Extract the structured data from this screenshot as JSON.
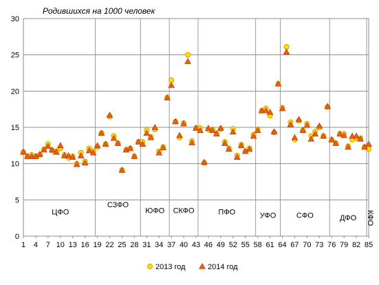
{
  "chart_data": {
    "type": "scatter",
    "title": "Родившихся на 1000 человек",
    "xlabel": "",
    "ylabel": "",
    "xlim": [
      1,
      85
    ],
    "ylim": [
      0,
      30
    ],
    "y_ticks": [
      0,
      5,
      10,
      15,
      20,
      25,
      30
    ],
    "x_ticks": [
      1,
      4,
      7,
      10,
      13,
      16,
      19,
      22,
      25,
      28,
      31,
      34,
      37,
      40,
      43,
      46,
      49,
      52,
      55,
      58,
      61,
      64,
      67,
      70,
      73,
      76,
      79,
      82,
      85
    ],
    "grid": {
      "horizontal": true,
      "vertical_region_dividers": true
    },
    "legend_position": "bottom",
    "district_boundaries": [
      18.5,
      29.5,
      36.5,
      43.5,
      57.5,
      63.5,
      75.5,
      84.5
    ],
    "districts": [
      {
        "label": "ЦФО",
        "x": 10,
        "y": 3,
        "vertical": false
      },
      {
        "label": "СЗФО",
        "x": 24,
        "y": 4,
        "vertical": false
      },
      {
        "label": "ЮФО",
        "x": 33,
        "y": 3.2,
        "vertical": false
      },
      {
        "label": "СКФО",
        "x": 40,
        "y": 3.2,
        "vertical": false
      },
      {
        "label": "ПФО",
        "x": 50.5,
        "y": 3,
        "vertical": false
      },
      {
        "label": "УФО",
        "x": 60.5,
        "y": 2.5,
        "vertical": false
      },
      {
        "label": "СФО",
        "x": 69.5,
        "y": 2.5,
        "vertical": false
      },
      {
        "label": "ДФО",
        "x": 80,
        "y": 2.2,
        "vertical": false
      },
      {
        "label": "КФО",
        "x": 84.8,
        "y": 2.5,
        "vertical": true
      }
    ],
    "series": [
      {
        "name": "2013 год",
        "marker": "circle",
        "color": "#ffe000",
        "stroke": "#d4a400",
        "x": [
          1,
          2,
          3,
          4,
          5,
          6,
          7,
          8,
          9,
          10,
          11,
          12,
          13,
          14,
          15,
          16,
          17,
          18,
          19,
          20,
          21,
          22,
          23,
          24,
          25,
          26,
          27,
          28,
          29,
          30,
          31,
          32,
          33,
          34,
          35,
          36,
          37,
          38,
          39,
          40,
          41,
          42,
          43,
          44,
          45,
          46,
          47,
          48,
          49,
          50,
          51,
          52,
          53,
          54,
          55,
          56,
          57,
          58,
          59,
          60,
          61,
          62,
          63,
          64,
          65,
          66,
          67,
          68,
          69,
          70,
          71,
          72,
          73,
          74,
          75,
          76,
          77,
          78,
          79,
          80,
          81,
          82,
          83,
          84,
          85
        ],
        "y": [
          11.6,
          11,
          11.2,
          11,
          11.2,
          12,
          12.7,
          11.8,
          11.7,
          12.1,
          11.2,
          10.8,
          11,
          10,
          11.5,
          10.3,
          12.1,
          11.7,
          12.3,
          14.2,
          12.7,
          16.5,
          13.8,
          12.8,
          9.1,
          11.9,
          12.1,
          11,
          13,
          13,
          14.6,
          13.7,
          14.7,
          11.7,
          12.3,
          19.1,
          21.5,
          15.8,
          13.6,
          15.6,
          25,
          13.1,
          14.9,
          14.9,
          10.1,
          14.7,
          14.7,
          14.2,
          14.8,
          13,
          12.1,
          14.8,
          11.1,
          12.6,
          11.7,
          12.1,
          14,
          14.7,
          17.3,
          17.6,
          16.6,
          14.3,
          21,
          17.7,
          26.1,
          15.7,
          13.3,
          15.9,
          14.6,
          15.5,
          13.8,
          14.4,
          15,
          13.8,
          17.8,
          13.3,
          12.8,
          14.1,
          14.1,
          12.4,
          13.3,
          13.5,
          13.5,
          12.3,
          12
        ]
      },
      {
        "name": "2014 год",
        "marker": "triangle",
        "color": "#e8601c",
        "stroke": "#b84000",
        "x": [
          1,
          2,
          3,
          4,
          5,
          6,
          7,
          8,
          9,
          10,
          11,
          12,
          13,
          14,
          15,
          16,
          17,
          18,
          19,
          20,
          21,
          22,
          23,
          24,
          25,
          26,
          27,
          28,
          29,
          30,
          31,
          32,
          33,
          34,
          35,
          36,
          37,
          38,
          39,
          40,
          41,
          42,
          43,
          44,
          45,
          46,
          47,
          48,
          49,
          50,
          51,
          52,
          53,
          54,
          55,
          56,
          57,
          58,
          59,
          60,
          61,
          62,
          63,
          64,
          65,
          66,
          67,
          68,
          69,
          70,
          71,
          72,
          73,
          74,
          75,
          76,
          77,
          78,
          79,
          80,
          81,
          82,
          83,
          84,
          85
        ],
        "y": [
          11.6,
          11,
          11,
          11,
          11.3,
          11.9,
          12.4,
          11.9,
          11.6,
          12.5,
          11.1,
          11.1,
          10.9,
          9.9,
          11.1,
          10.1,
          11.8,
          11.5,
          12.5,
          14.2,
          12.7,
          16.7,
          13.5,
          12.8,
          9.1,
          11.9,
          12.1,
          11,
          13,
          12.7,
          14.2,
          13.6,
          15,
          11.5,
          12.2,
          19.1,
          20.8,
          15.8,
          13.9,
          15.5,
          24.1,
          12.9,
          14.9,
          14.6,
          10.2,
          14.9,
          14.6,
          14.1,
          14.9,
          12.8,
          12,
          14.4,
          10.9,
          12.5,
          11.7,
          12,
          13.8,
          14.6,
          17.3,
          17.3,
          17.1,
          14.4,
          21,
          17.6,
          25.4,
          15.4,
          13.6,
          16.1,
          14.6,
          15.3,
          13.4,
          14.1,
          15.2,
          13.8,
          17.9,
          13.3,
          12.8,
          14.1,
          13.9,
          12.3,
          13.8,
          13.8,
          13.4,
          12.3,
          12.7
        ]
      }
    ]
  }
}
